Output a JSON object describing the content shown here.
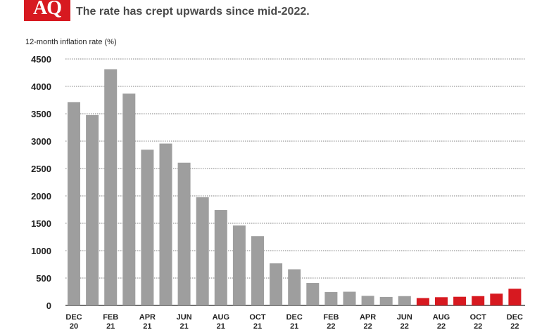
{
  "header": {
    "logo_text": "AQ",
    "subtitle": "The rate has crept upwards since mid-2022."
  },
  "chart_data": {
    "type": "bar",
    "title": "",
    "subtitle": "The rate has crept upwards since mid-2022.",
    "ylabel": "12-month inflation rate (%)",
    "xlabel": "",
    "ylim": [
      0,
      4500
    ],
    "yticks": [
      0,
      500,
      1000,
      1500,
      2000,
      2500,
      3000,
      3500,
      4000,
      4500
    ],
    "grid": true,
    "x_tick_labels": [
      {
        "month": "DEC",
        "year": "20"
      },
      {
        "month": "FEB",
        "year": "21"
      },
      {
        "month": "APR",
        "year": "21"
      },
      {
        "month": "JUN",
        "year": "21"
      },
      {
        "month": "AUG",
        "year": "21"
      },
      {
        "month": "OCT",
        "year": "21"
      },
      {
        "month": "DEC",
        "year": "21"
      },
      {
        "month": "FEB",
        "year": "22"
      },
      {
        "month": "APR",
        "year": "22"
      },
      {
        "month": "JUN",
        "year": "22"
      },
      {
        "month": "AUG",
        "year": "22"
      },
      {
        "month": "OCT",
        "year": "22"
      },
      {
        "month": "DEC",
        "year": "22"
      }
    ],
    "categories": [
      "Dec 20",
      "Jan 21",
      "Feb 21",
      "Mar 21",
      "Apr 21",
      "May 21",
      "Jun 21",
      "Jul 21",
      "Aug 21",
      "Sep 21",
      "Oct 21",
      "Nov 21",
      "Dec 21",
      "Jan 22",
      "Feb 22",
      "Mar 22",
      "Apr 22",
      "May 22",
      "Jun 22",
      "Jul 22",
      "Aug 22",
      "Sep 22",
      "Oct 22",
      "Nov 22",
      "Dec 22"
    ],
    "values": [
      3713,
      3476,
      4313,
      3867,
      2844,
      2955,
      2606,
      1976,
      1743,
      1459,
      1266,
      768,
      660,
      410,
      245,
      250,
      175,
      155,
      170,
      135,
      150,
      158,
      170,
      215,
      305
    ],
    "highlight_from_index": 19,
    "colors": {
      "default": "#9e9e9e",
      "highlight": "#d71920"
    }
  }
}
